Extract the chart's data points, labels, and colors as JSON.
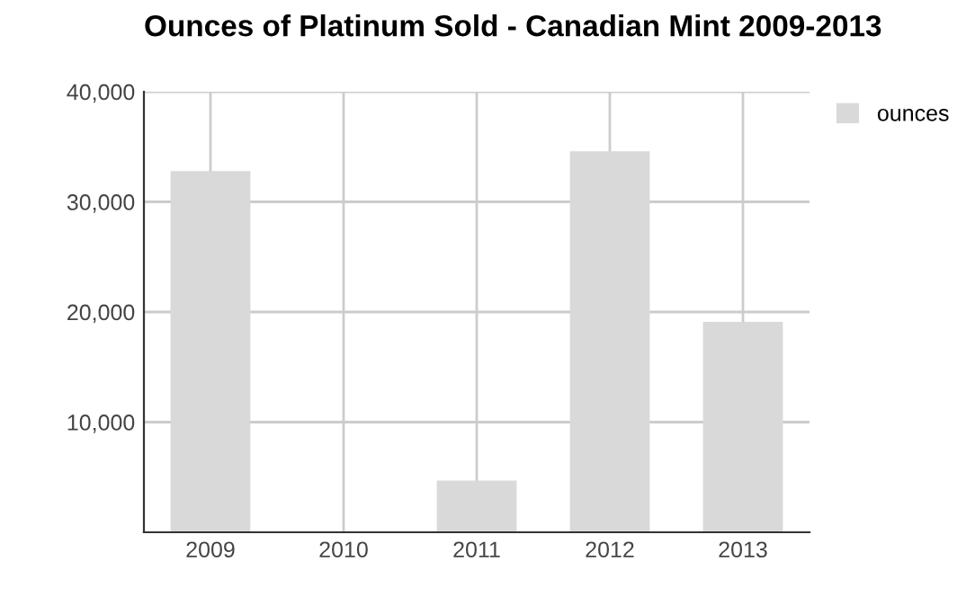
{
  "chart_data": {
    "type": "bar",
    "title": "Ounces of Platinum Sold - Canadian Mint 2009-2013",
    "categories": [
      "2009",
      "2010",
      "2011",
      "2012",
      "2013"
    ],
    "series": [
      {
        "name": "ounces",
        "color": "#d9d9d9",
        "values": [
          32800,
          0,
          4700,
          34600,
          19100
        ]
      }
    ],
    "ylim": [
      0,
      40000
    ],
    "yticks": [
      {
        "value": 10000,
        "label": "10,000"
      },
      {
        "value": 20000,
        "label": "20,000"
      },
      {
        "value": 30000,
        "label": "30,000"
      },
      {
        "value": 40000,
        "label": "40,000"
      }
    ],
    "grid": true,
    "legend": "top right"
  }
}
